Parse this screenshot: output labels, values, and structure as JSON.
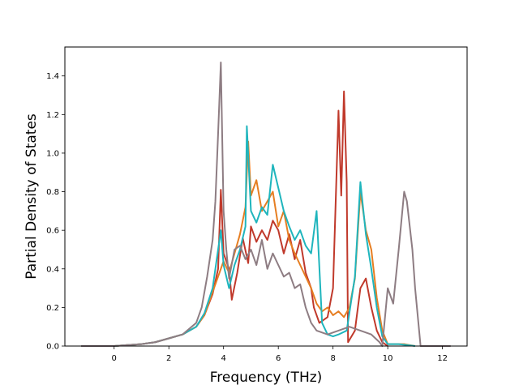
{
  "chart_data": {
    "type": "line",
    "title": "",
    "xlabel": "Frequency (THz)",
    "ylabel": "Partial Density of States",
    "xlim": [
      -1.8,
      12.9
    ],
    "ylim": [
      0.0,
      1.55
    ],
    "xticks": [
      0,
      2,
      4,
      6,
      8,
      10,
      12
    ],
    "yticks": [
      0.0,
      0.2,
      0.4,
      0.6,
      0.8,
      1.0,
      1.2,
      1.4
    ],
    "xtick_labels": [
      "0",
      "2",
      "4",
      "6",
      "8",
      "10",
      "12"
    ],
    "ytick_labels": [
      "0.0",
      "0.2",
      "0.4",
      "0.6",
      "0.8",
      "1.0",
      "1.2",
      "1.4"
    ],
    "grid": false,
    "legend": "none",
    "series": [
      {
        "color": "#c0392b",
        "points": [
          [
            -1.2,
            0
          ],
          [
            0,
            0
          ],
          [
            0.5,
            0.005
          ],
          [
            1,
            0.01
          ],
          [
            1.5,
            0.02
          ],
          [
            2,
            0.04
          ],
          [
            2.5,
            0.06
          ],
          [
            3,
            0.1
          ],
          [
            3.3,
            0.16
          ],
          [
            3.6,
            0.27
          ],
          [
            3.8,
            0.4
          ],
          [
            3.9,
            0.81
          ],
          [
            4.0,
            0.48
          ],
          [
            4.2,
            0.4
          ],
          [
            4.3,
            0.24
          ],
          [
            4.5,
            0.38
          ],
          [
            4.7,
            0.56
          ],
          [
            4.9,
            0.43
          ],
          [
            5.0,
            0.62
          ],
          [
            5.2,
            0.54
          ],
          [
            5.4,
            0.6
          ],
          [
            5.6,
            0.55
          ],
          [
            5.8,
            0.65
          ],
          [
            6.0,
            0.6
          ],
          [
            6.2,
            0.48
          ],
          [
            6.4,
            0.58
          ],
          [
            6.6,
            0.45
          ],
          [
            6.8,
            0.55
          ],
          [
            7.0,
            0.38
          ],
          [
            7.2,
            0.3
          ],
          [
            7.3,
            0.2
          ],
          [
            7.5,
            0.12
          ],
          [
            7.8,
            0.15
          ],
          [
            8.0,
            0.3
          ],
          [
            8.2,
            1.22
          ],
          [
            8.3,
            0.78
          ],
          [
            8.4,
            1.32
          ],
          [
            8.5,
            0.85
          ],
          [
            8.55,
            0.02
          ],
          [
            8.8,
            0.08
          ],
          [
            9.0,
            0.3
          ],
          [
            9.2,
            0.35
          ],
          [
            9.4,
            0.2
          ],
          [
            9.6,
            0.08
          ],
          [
            9.8,
            0.02
          ],
          [
            10,
            0
          ]
        ]
      },
      {
        "color": "#e67e22",
        "points": [
          [
            -1.2,
            0
          ],
          [
            0,
            0
          ],
          [
            0.5,
            0.005
          ],
          [
            1,
            0.01
          ],
          [
            1.5,
            0.02
          ],
          [
            2,
            0.04
          ],
          [
            2.5,
            0.06
          ],
          [
            3,
            0.1
          ],
          [
            3.3,
            0.16
          ],
          [
            3.6,
            0.28
          ],
          [
            3.8,
            0.36
          ],
          [
            4.0,
            0.44
          ],
          [
            4.2,
            0.38
          ],
          [
            4.4,
            0.48
          ],
          [
            4.6,
            0.58
          ],
          [
            4.8,
            0.72
          ],
          [
            4.9,
            1.06
          ],
          [
            5.0,
            0.78
          ],
          [
            5.2,
            0.86
          ],
          [
            5.4,
            0.7
          ],
          [
            5.6,
            0.75
          ],
          [
            5.8,
            0.8
          ],
          [
            6.0,
            0.62
          ],
          [
            6.2,
            0.7
          ],
          [
            6.4,
            0.55
          ],
          [
            6.6,
            0.48
          ],
          [
            6.8,
            0.42
          ],
          [
            7.0,
            0.36
          ],
          [
            7.2,
            0.3
          ],
          [
            7.4,
            0.22
          ],
          [
            7.6,
            0.18
          ],
          [
            7.8,
            0.2
          ],
          [
            8.0,
            0.16
          ],
          [
            8.2,
            0.18
          ],
          [
            8.4,
            0.15
          ],
          [
            8.6,
            0.2
          ],
          [
            8.8,
            0.35
          ],
          [
            9.0,
            0.8
          ],
          [
            9.2,
            0.6
          ],
          [
            9.4,
            0.5
          ],
          [
            9.6,
            0.25
          ],
          [
            9.8,
            0.08
          ],
          [
            10.0,
            0.01
          ],
          [
            10.2,
            0.01
          ],
          [
            10.6,
            0.01
          ],
          [
            11.0,
            0
          ]
        ]
      },
      {
        "color": "#1fb5bd",
        "points": [
          [
            -1.2,
            0
          ],
          [
            0,
            0
          ],
          [
            0.5,
            0.005
          ],
          [
            1,
            0.01
          ],
          [
            1.5,
            0.02
          ],
          [
            2,
            0.04
          ],
          [
            2.5,
            0.06
          ],
          [
            3,
            0.1
          ],
          [
            3.3,
            0.17
          ],
          [
            3.6,
            0.3
          ],
          [
            3.8,
            0.5
          ],
          [
            3.9,
            0.6
          ],
          [
            4.0,
            0.42
          ],
          [
            4.2,
            0.3
          ],
          [
            4.4,
            0.42
          ],
          [
            4.6,
            0.5
          ],
          [
            4.8,
            0.62
          ],
          [
            4.85,
            1.14
          ],
          [
            5.0,
            0.7
          ],
          [
            5.2,
            0.64
          ],
          [
            5.4,
            0.72
          ],
          [
            5.6,
            0.68
          ],
          [
            5.8,
            0.94
          ],
          [
            6.0,
            0.82
          ],
          [
            6.2,
            0.7
          ],
          [
            6.4,
            0.62
          ],
          [
            6.6,
            0.55
          ],
          [
            6.8,
            0.6
          ],
          [
            7.0,
            0.52
          ],
          [
            7.2,
            0.48
          ],
          [
            7.4,
            0.7
          ],
          [
            7.6,
            0.12
          ],
          [
            7.8,
            0.06
          ],
          [
            8.0,
            0.05
          ],
          [
            8.2,
            0.06
          ],
          [
            8.5,
            0.08
          ],
          [
            8.8,
            0.36
          ],
          [
            9.0,
            0.85
          ],
          [
            9.2,
            0.58
          ],
          [
            9.4,
            0.4
          ],
          [
            9.6,
            0.2
          ],
          [
            9.8,
            0.05
          ],
          [
            10.0,
            0.01
          ],
          [
            10.4,
            0.01
          ],
          [
            11.0,
            0
          ]
        ]
      },
      {
        "color": "#8e7d83",
        "points": [
          [
            -1.2,
            0
          ],
          [
            0,
            0
          ],
          [
            0.5,
            0.005
          ],
          [
            1,
            0.01
          ],
          [
            1.5,
            0.02
          ],
          [
            2,
            0.04
          ],
          [
            2.5,
            0.06
          ],
          [
            3,
            0.12
          ],
          [
            3.2,
            0.2
          ],
          [
            3.4,
            0.36
          ],
          [
            3.6,
            0.55
          ],
          [
            3.7,
            0.75
          ],
          [
            3.8,
            1.1
          ],
          [
            3.9,
            1.47
          ],
          [
            4.0,
            0.7
          ],
          [
            4.1,
            0.5
          ],
          [
            4.2,
            0.35
          ],
          [
            4.4,
            0.5
          ],
          [
            4.6,
            0.52
          ],
          [
            4.8,
            0.45
          ],
          [
            5.0,
            0.5
          ],
          [
            5.2,
            0.42
          ],
          [
            5.4,
            0.55
          ],
          [
            5.6,
            0.4
          ],
          [
            5.8,
            0.48
          ],
          [
            6.0,
            0.42
          ],
          [
            6.2,
            0.36
          ],
          [
            6.4,
            0.38
          ],
          [
            6.6,
            0.3
          ],
          [
            6.8,
            0.32
          ],
          [
            7.0,
            0.2
          ],
          [
            7.2,
            0.12
          ],
          [
            7.4,
            0.08
          ],
          [
            7.8,
            0.06
          ],
          [
            8.2,
            0.08
          ],
          [
            8.6,
            0.1
          ],
          [
            9.0,
            0.08
          ],
          [
            9.4,
            0.06
          ],
          [
            9.7,
            0.02
          ],
          [
            9.8,
            0.0
          ],
          [
            10.0,
            0.3
          ],
          [
            10.2,
            0.22
          ],
          [
            10.4,
            0.5
          ],
          [
            10.6,
            0.8
          ],
          [
            10.7,
            0.75
          ],
          [
            10.9,
            0.5
          ],
          [
            11.0,
            0.3
          ],
          [
            11.2,
            0.0
          ],
          [
            12.3,
            0
          ]
        ]
      }
    ]
  }
}
